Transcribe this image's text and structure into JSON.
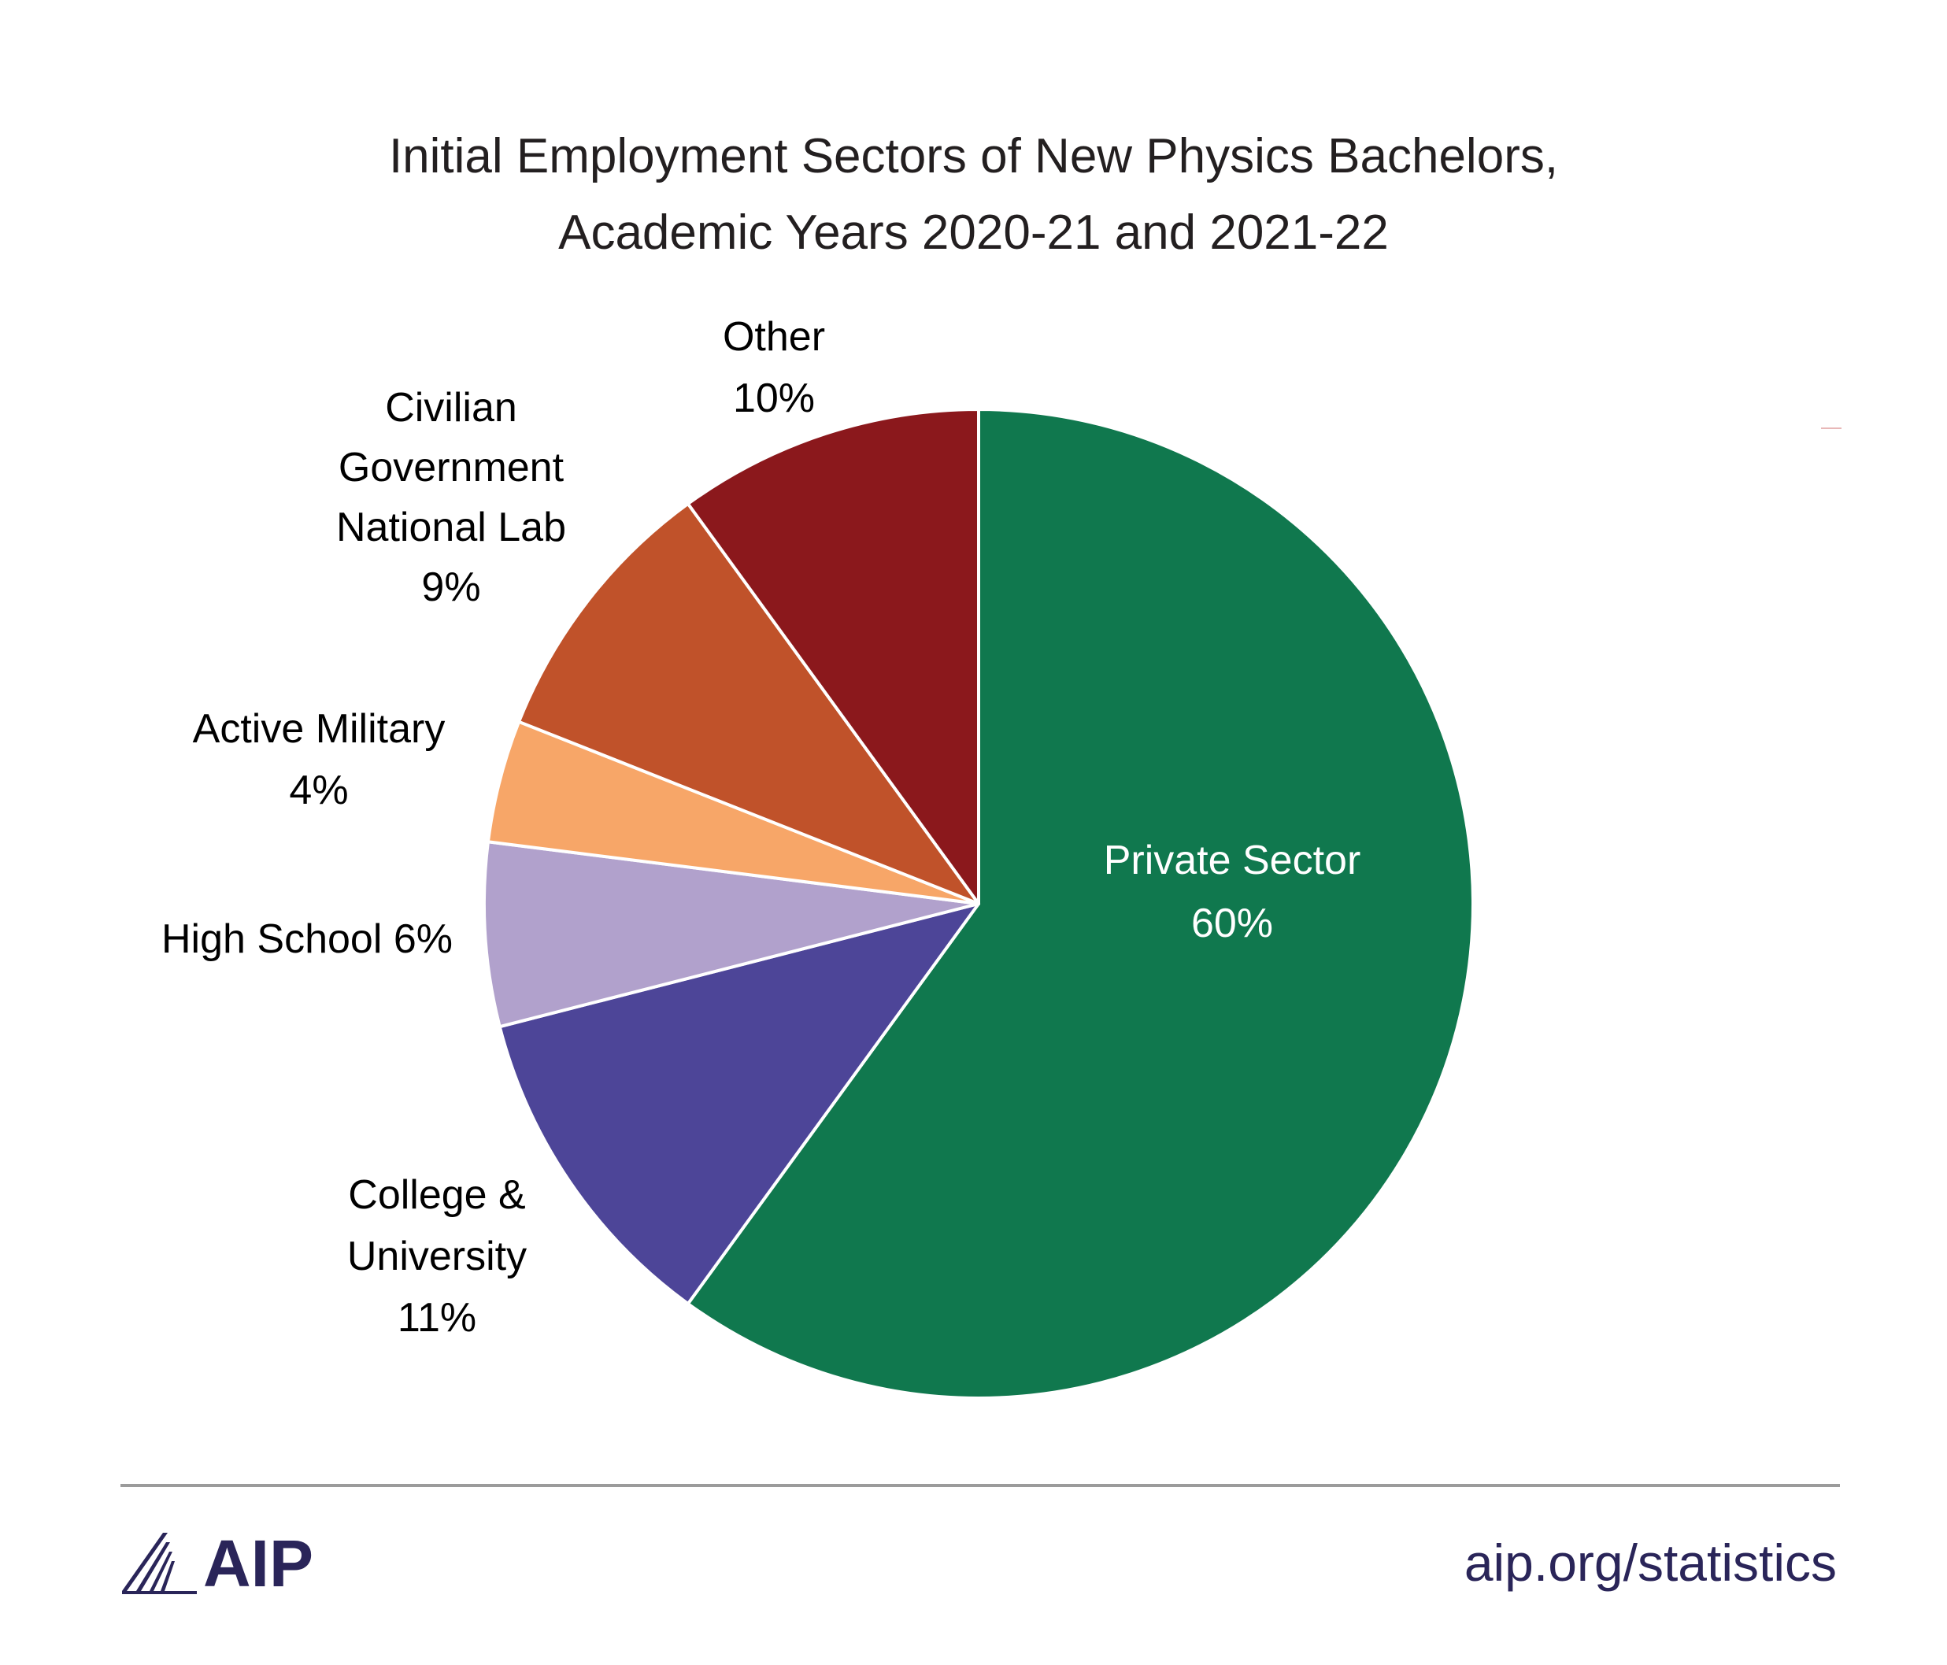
{
  "chart_data": {
    "type": "pie",
    "title_line1": "Initial Employment Sectors of New Physics Bachelors,",
    "title_line2": "Academic Years 2020-21 and 2021-22",
    "slices": [
      {
        "label_lines": [
          "Private Sector"
        ],
        "pct_text": "60%",
        "value": 60,
        "color": "#10784e",
        "label_inside": true
      },
      {
        "label_lines": [
          "College &",
          "University"
        ],
        "pct_text": "11%",
        "value": 11,
        "color": "#4d4598",
        "label_inside": false
      },
      {
        "label_lines": [
          "High School 6%"
        ],
        "pct_text": "",
        "value": 6,
        "color": "#b1a1cc",
        "label_inside": false
      },
      {
        "label_lines": [
          "Active Military"
        ],
        "pct_text": "4%",
        "value": 4,
        "color": "#f7a668",
        "label_inside": false
      },
      {
        "label_lines": [
          "Civilian",
          "Government",
          "National Lab"
        ],
        "pct_text": "9%",
        "value": 9,
        "color": "#c0522a",
        "label_inside": false
      },
      {
        "label_lines": [
          "Other"
        ],
        "pct_text": "10%",
        "value": 10,
        "color": "#8b181c",
        "label_inside": false
      }
    ]
  },
  "footer": {
    "logo_text": "AIP",
    "site": "aip.org/statistics",
    "brand_color": "#2a2559"
  }
}
